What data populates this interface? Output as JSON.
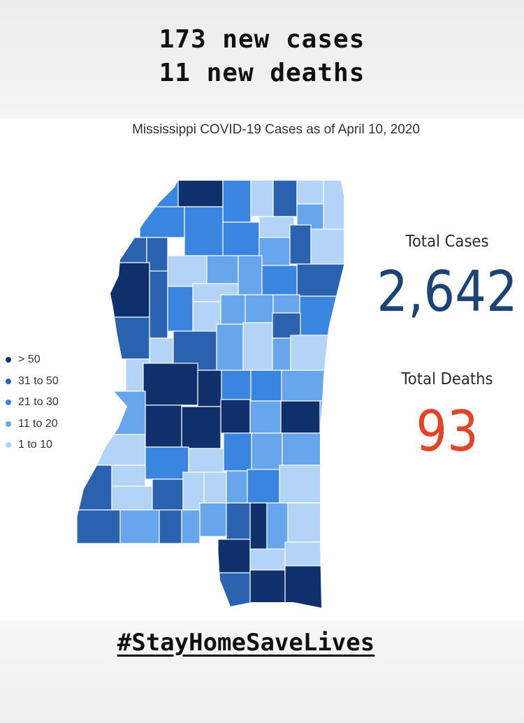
{
  "headline": {
    "line1": "173 new cases",
    "line2": "11 new deaths"
  },
  "map": {
    "title": "Mississippi COVID-19 Cases as of April 10, 2020"
  },
  "legend": [
    {
      "label": "> 50",
      "color": "#10306b"
    },
    {
      "label": "31 to 50",
      "color": "#2a62b0"
    },
    {
      "label": "21 to 30",
      "color": "#3985e0"
    },
    {
      "label": "11 to 20",
      "color": "#67a6ec"
    },
    {
      "label": "1 to 10",
      "color": "#b3d4f6"
    }
  ],
  "stats": {
    "total_cases_label": "Total Cases",
    "total_cases": "2,642",
    "total_deaths_label": "Total Deaths",
    "total_deaths": "93"
  },
  "footer": {
    "hashtag": "#StayHomeSaveLives"
  },
  "colors": {
    "cases_value": "#1b4376",
    "deaths_value": "#e34326"
  }
}
